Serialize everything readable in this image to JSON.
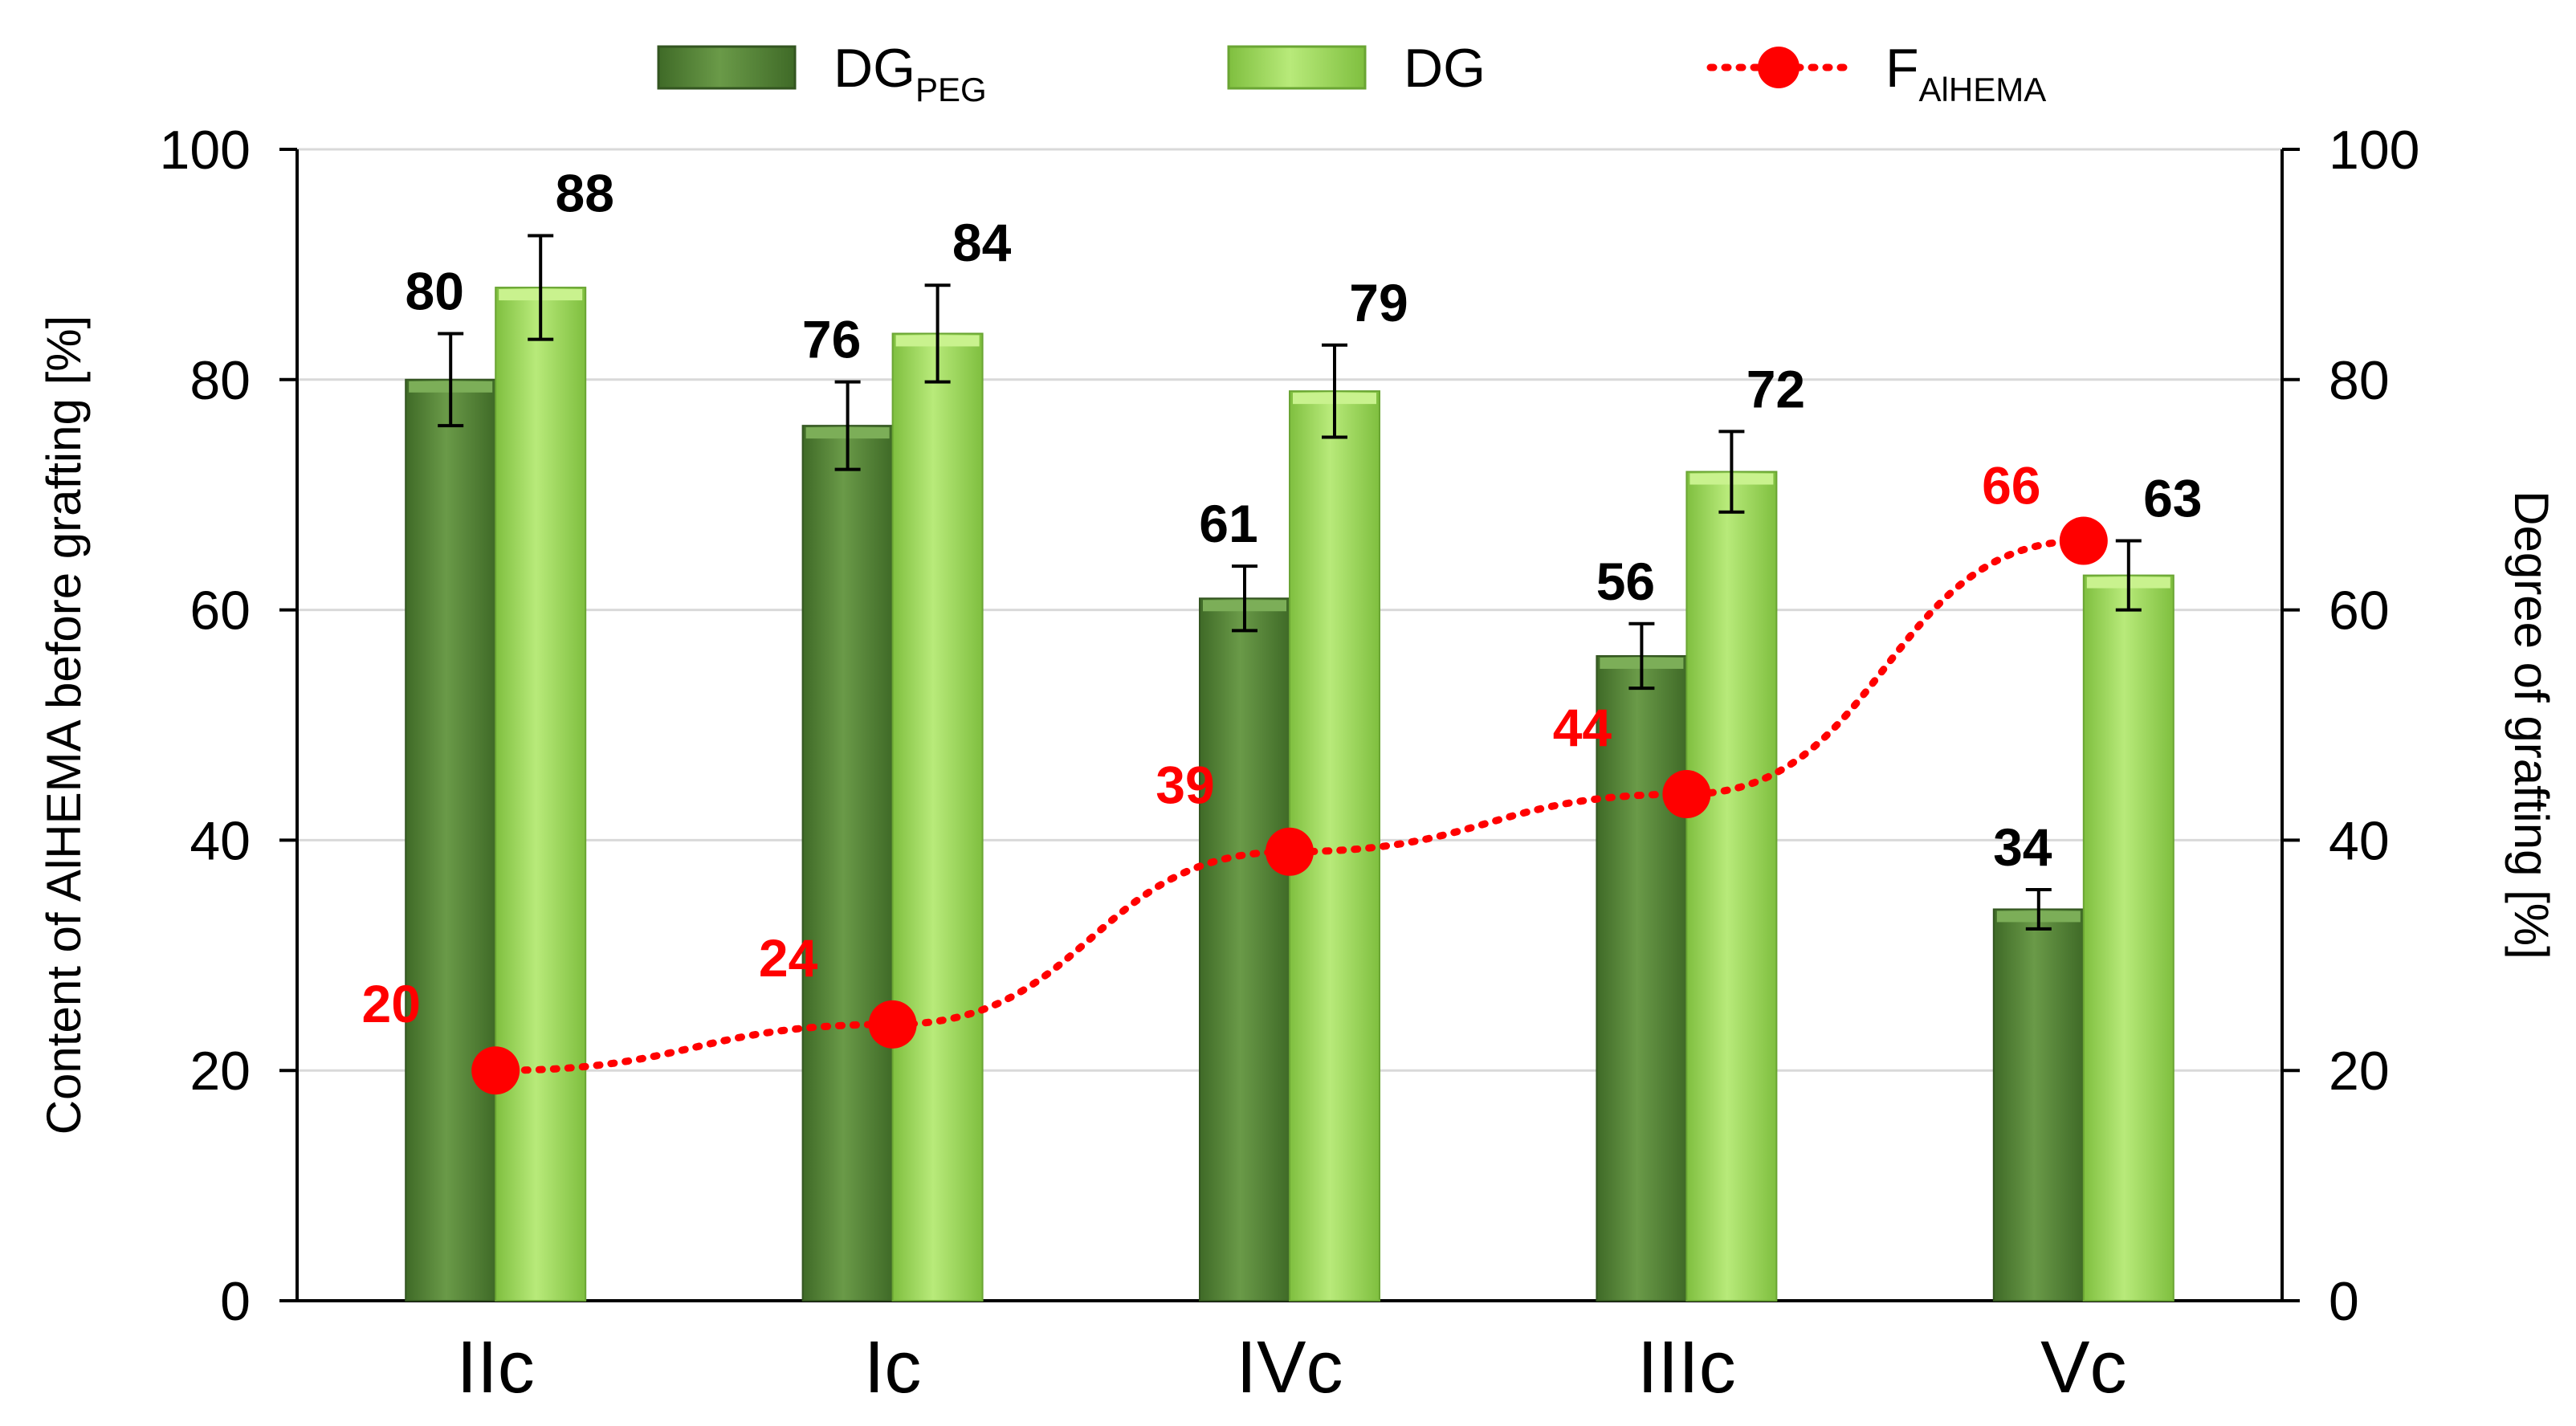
{
  "chart_data": {
    "type": "bar",
    "categories": [
      "IIc",
      "Ic",
      "IVc",
      "IIIc",
      "Vc"
    ],
    "series": [
      {
        "name": "DG",
        "name_sub": "PEG",
        "kind": "bar",
        "axis": "right",
        "values": [
          80,
          76,
          61,
          56,
          34
        ],
        "errors": [
          4,
          3.8,
          2.8,
          2.8,
          1.7
        ],
        "color": "#5a8a3c"
      },
      {
        "name": "DG",
        "name_sub": "",
        "kind": "bar",
        "axis": "right",
        "values": [
          88,
          84,
          79,
          72,
          63
        ],
        "errors": [
          4.5,
          4.2,
          4,
          3.5,
          3
        ],
        "color": "#9ed656"
      },
      {
        "name": "F",
        "name_sub": "AlHEMA",
        "kind": "line",
        "axis": "left",
        "values": [
          20,
          24,
          39,
          44,
          66
        ],
        "color": "#ff0000"
      }
    ],
    "ylabel": "Content of AlHEMA before grafting [%]",
    "y2label": "Degree of grafting [%]",
    "ylim": [
      0,
      100
    ],
    "y2lim": [
      0,
      100
    ],
    "yticks": [
      0,
      20,
      40,
      60,
      80,
      100
    ],
    "grid": true,
    "legend_position": "top-center"
  }
}
